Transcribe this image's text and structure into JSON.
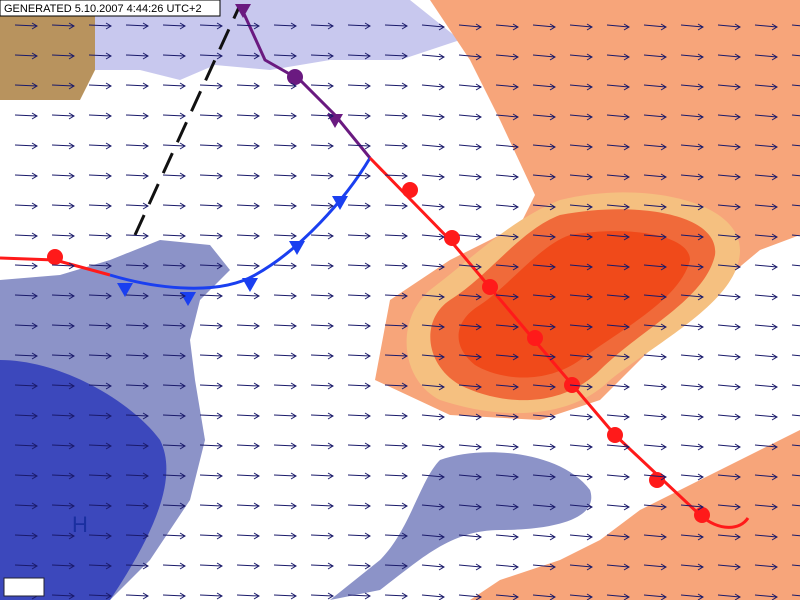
{
  "header": {
    "generated": "GENERATED 5.10.2007 4:44:26 UTC+2"
  },
  "labels": {
    "high": "H"
  }
}
